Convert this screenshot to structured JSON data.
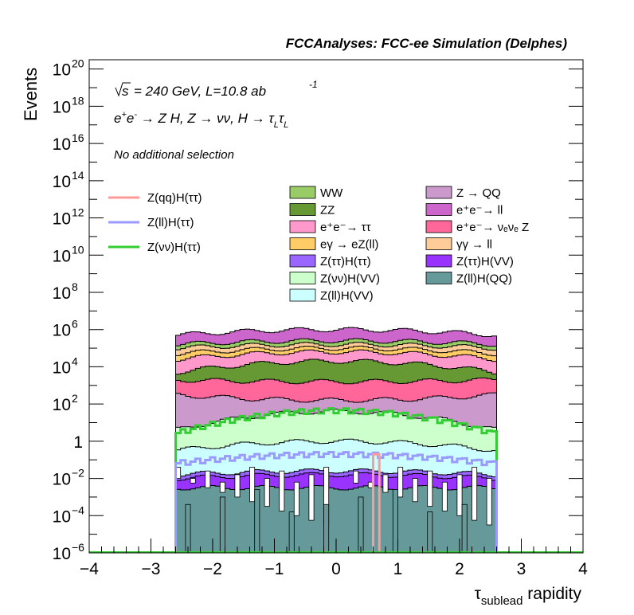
{
  "header": {
    "title": "FCCAnalyses: FCC-ee Simulation (Delphes)"
  },
  "annotations": {
    "sqrt_s": "s",
    "energy_lumi": "= 240 GeV, L=10.8 ab",
    "energy_lumi_exp": "-1",
    "process_text": "e⁺e⁻ → Z H, Z → νν, H → τLτL",
    "selection": "No additional selection"
  },
  "legend": {
    "lines": [
      {
        "label": "Z(qq)H(ττ)",
        "color": "#ff9a9a"
      },
      {
        "label": "Z(ll)H(ττ)",
        "color": "#9a9aff"
      },
      {
        "label": "Z(νν)H(ττ)",
        "color": "#33cc33"
      }
    ],
    "boxes": [
      {
        "label": "WW",
        "color": "#99cc66"
      },
      {
        "label": "Z → QQ",
        "color": "#cc99cc"
      },
      {
        "label": "ZZ",
        "color": "#669933"
      },
      {
        "label": "e⁺e⁻→ ll",
        "color": "#cc66cc"
      },
      {
        "label": "e⁺e⁻→ ττ",
        "color": "#ff99cc"
      },
      {
        "label": "e⁺e⁻→ νₑνₑ Z",
        "color": "#ff6699"
      },
      {
        "label": "eγ → eZ(ll)",
        "color": "#ffcc66"
      },
      {
        "label": "γγ → ll",
        "color": "#ffcc99"
      },
      {
        "label": "Z(ττ)H(ττ)",
        "color": "#9966ff"
      },
      {
        "label": "Z(ττ)H(VV)",
        "color": "#9933ff"
      },
      {
        "label": "Z(νν)H(VV)",
        "color": "#ccffcc"
      },
      {
        "label": "Z(ll)H(QQ)",
        "color": "#669999"
      },
      {
        "label": "Z(ll)H(VV)",
        "color": "#ccffff"
      }
    ]
  },
  "chart_data": {
    "type": "area",
    "title": "FCCAnalyses: FCC-ee Simulation (Delphes)",
    "xlabel": "τ_sublead rapidity",
    "ylabel": "Events",
    "xlim": [
      -4,
      4
    ],
    "ylim_log10": [
      -6,
      20.5
    ],
    "y_scale": "log",
    "grid": false,
    "x_ticks": [
      "−4",
      "−3",
      "−2",
      "−1",
      "0",
      "1",
      "2",
      "3",
      "4"
    ],
    "y_ticks": [
      {
        "base": "10",
        "exp": "−6",
        "v": -6
      },
      {
        "base": "10",
        "exp": "−4",
        "v": -4
      },
      {
        "base": "10",
        "exp": "−2",
        "v": -2
      },
      {
        "base": "1",
        "exp": "",
        "v": 0
      },
      {
        "base": "10",
        "exp": "2",
        "v": 2
      },
      {
        "base": "10",
        "exp": "4",
        "v": 4
      },
      {
        "base": "10",
        "exp": "6",
        "v": 6
      },
      {
        "base": "10",
        "exp": "8",
        "v": 8
      },
      {
        "base": "10",
        "exp": "10",
        "v": 10
      },
      {
        "base": "10",
        "exp": "12",
        "v": 12
      },
      {
        "base": "10",
        "exp": "14",
        "v": 14
      },
      {
        "base": "10",
        "exp": "16",
        "v": 16
      },
      {
        "base": "10",
        "exp": "18",
        "v": 18
      },
      {
        "base": "10",
        "exp": "20",
        "v": 20
      }
    ],
    "x_range_filled": [
      -2.6,
      2.6
    ],
    "stack_log10_tops": [
      {
        "name": "Z(ll)H(QQ)",
        "color": "#669999",
        "center": -2.5,
        "edge": -2.5
      },
      {
        "name": "Z(ττ)H(VV)",
        "color": "#9933ff",
        "center": -1.8,
        "edge": -2.0
      },
      {
        "name": "Z(ττ)H(ττ)",
        "color": "#9966ff",
        "center": -1.6,
        "edge": -1.8
      },
      {
        "name": "Z(ll)H(VV)",
        "color": "#ccffff",
        "center": 0.0,
        "edge": -0.5
      },
      {
        "name": "Z(νν)H(VV)",
        "color": "#ccffcc",
        "center": 1.6,
        "edge": 0.6
      },
      {
        "name": "Z → QQ",
        "color": "#cc99cc",
        "center": 2.2,
        "edge": 2.5
      },
      {
        "name": "e⁺e⁻→ νₑνₑ Z",
        "color": "#ff6699",
        "center": 3.2,
        "edge": 3.3
      },
      {
        "name": "ZZ",
        "color": "#669933",
        "center": 4.3,
        "edge": 3.7
      },
      {
        "name": "e⁺e⁻→ ττ",
        "color": "#ff99cc",
        "center": 4.8,
        "edge": 4.4
      },
      {
        "name": "eγ → eZ(ll)",
        "color": "#ffcc66",
        "center": 5.0,
        "edge": 4.7
      },
      {
        "name": "γγ → ll",
        "color": "#ffcc99",
        "center": 5.2,
        "edge": 5.0
      },
      {
        "name": "WW",
        "color": "#99cc66",
        "center": 5.4,
        "edge": 5.2
      },
      {
        "name": "e⁺e⁻→ ll",
        "color": "#cc66cc",
        "center": 6.0,
        "edge": 5.7
      }
    ],
    "signal_lines": [
      {
        "name": "Z(νν)H(ττ)",
        "color": "#33cc33",
        "center_log10": 1.65,
        "edge_log10": 0.4
      },
      {
        "name": "Z(ll)H(ττ)",
        "color": "#9a9aff",
        "center_log10": -0.7,
        "edge_log10": -1.2
      },
      {
        "name": "Z(qq)H(ττ)",
        "color": "#ff9a9a",
        "spike_x": [
          0.6,
          0.7
        ],
        "spike_log10": -0.7
      }
    ]
  }
}
